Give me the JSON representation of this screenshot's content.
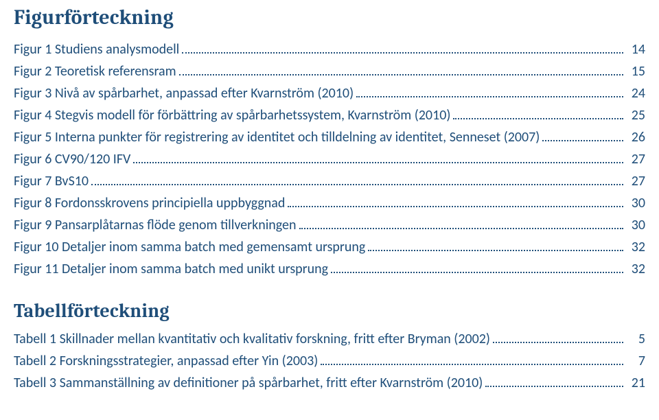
{
  "colors": {
    "heading": "#1f4e79",
    "link": "#1f4e79",
    "text": "#000000",
    "background": "#ffffff",
    "dots": "#1f4e79"
  },
  "typography": {
    "heading_font": "Cambria, Georgia, serif",
    "body_font": "Calibri, 'Segoe UI', Arial, sans-serif",
    "heading1_size_pt": 22,
    "heading2_size_pt": 21,
    "entry_size_pt": 15
  },
  "sections": {
    "figures": {
      "title": "Figurförteckning",
      "entries": [
        {
          "label": "Figur 1 Studiens analysmodell",
          "page": "14"
        },
        {
          "label": "Figur 2 Teoretisk referensram",
          "page": "15"
        },
        {
          "label": "Figur 3 Nivå av spårbarhet, anpassad efter Kvarnström (2010)",
          "page": "24"
        },
        {
          "label": "Figur 4 Stegvis modell för förbättring av spårbarhetssystem, Kvarnström (2010)",
          "page": "25"
        },
        {
          "label": "Figur 5 Interna punkter för registrering av identitet och tilldelning av identitet, Senneset (2007)",
          "page": "26"
        },
        {
          "label": "Figur 6 CV90/120 IFV",
          "page": "27"
        },
        {
          "label": "Figur 7 BvS10",
          "page": "27"
        },
        {
          "label": "Figur 8 Fordonsskrovens principiella uppbyggnad",
          "page": "30"
        },
        {
          "label": "Figur 9 Pansarplåtarnas flöde genom tillverkningen",
          "page": "30"
        },
        {
          "label": "Figur 10 Detaljer inom samma batch med gemensamt ursprung",
          "page": "32"
        },
        {
          "label": "Figur 11 Detaljer inom samma batch med unikt ursprung",
          "page": "32"
        }
      ]
    },
    "tables": {
      "title": "Tabellförteckning",
      "entries": [
        {
          "label": "Tabell 1 Skillnader mellan kvantitativ och kvalitativ forskning, fritt efter Bryman (2002)",
          "page": "5"
        },
        {
          "label": "Tabell 2 Forskningsstrategier, anpassad efter Yin (2003)",
          "page": "7"
        },
        {
          "label": "Tabell 3 Sammanställning av definitioner på spårbarhet, fritt efter Kvarnström (2010)",
          "page": "21"
        }
      ]
    }
  }
}
